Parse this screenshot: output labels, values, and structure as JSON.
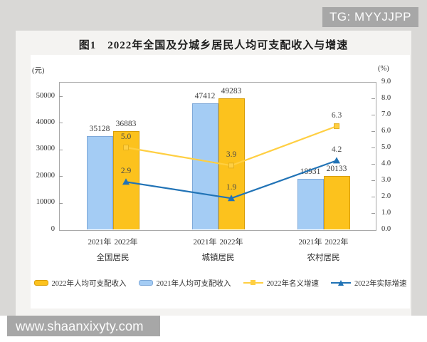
{
  "watermarks": {
    "top_right": "TG: MYYJJPP",
    "bottom_left": "www.shaanxixyty.com"
  },
  "chart": {
    "title": "图1　2022年全国及分城乡居民人均可支配收入与增速"
  },
  "chart_data": {
    "type": "bar",
    "subtype": "grouped-bar-with-lines",
    "title": "图1　2022年全国及分城乡居民人均可支配收入与增速",
    "categories": [
      "全国居民",
      "城镇居民",
      "农村居民"
    ],
    "bar_year_labels": [
      "2021年",
      "2022年"
    ],
    "series": [
      {
        "name": "2021年人均可支配收入",
        "kind": "bar",
        "color": "#A4CCF4",
        "border": "#7FA9D9",
        "values": [
          35128,
          47412,
          18931
        ],
        "value_labels": [
          "35128",
          "47412",
          "18931"
        ]
      },
      {
        "name": "2022年人均可支配收入",
        "kind": "bar",
        "color": "#FCC21D",
        "border": "#D89D06",
        "values": [
          36883,
          49283,
          20133
        ],
        "value_labels": [
          "36883",
          "49283",
          "20133"
        ]
      },
      {
        "name": "2022年名义增速",
        "kind": "line",
        "marker": "square",
        "color": "#FFCF42",
        "marker_border": "#E3AF1F",
        "values": [
          5.0,
          3.9,
          6.3
        ],
        "value_labels": [
          "5.0",
          "3.9",
          "6.3"
        ]
      },
      {
        "name": "2022年实际增速",
        "kind": "line",
        "marker": "triangle",
        "color": "#2173B6",
        "values": [
          2.9,
          1.9,
          4.2
        ],
        "value_labels": [
          "2.9",
          "1.9",
          "4.2"
        ]
      }
    ],
    "left_axis": {
      "unit": "(元)",
      "tick_values": [
        0,
        10000,
        20000,
        30000,
        40000,
        50000
      ],
      "tick_labels": [
        "0",
        "10000",
        "20000",
        "30000",
        "40000",
        "50000"
      ]
    },
    "right_axis": {
      "unit": "(%)",
      "tick_values": [
        0,
        1,
        2,
        3,
        4,
        5,
        6,
        7,
        8,
        9
      ],
      "tick_labels": [
        "0.0",
        "1.0",
        "2.0",
        "3.0",
        "4.0",
        "5.0",
        "6.0",
        "7.0",
        "8.0",
        "9.0"
      ]
    },
    "grid": false,
    "legend_position": "bottom"
  },
  "legend": [
    {
      "label": "2022年人均可支配收入",
      "series": 1
    },
    {
      "label": "2021年人均可支配收入",
      "series": 0
    },
    {
      "label": "2022年名义增速",
      "series": 2
    },
    {
      "label": "2022年实际增速",
      "series": 3
    }
  ]
}
